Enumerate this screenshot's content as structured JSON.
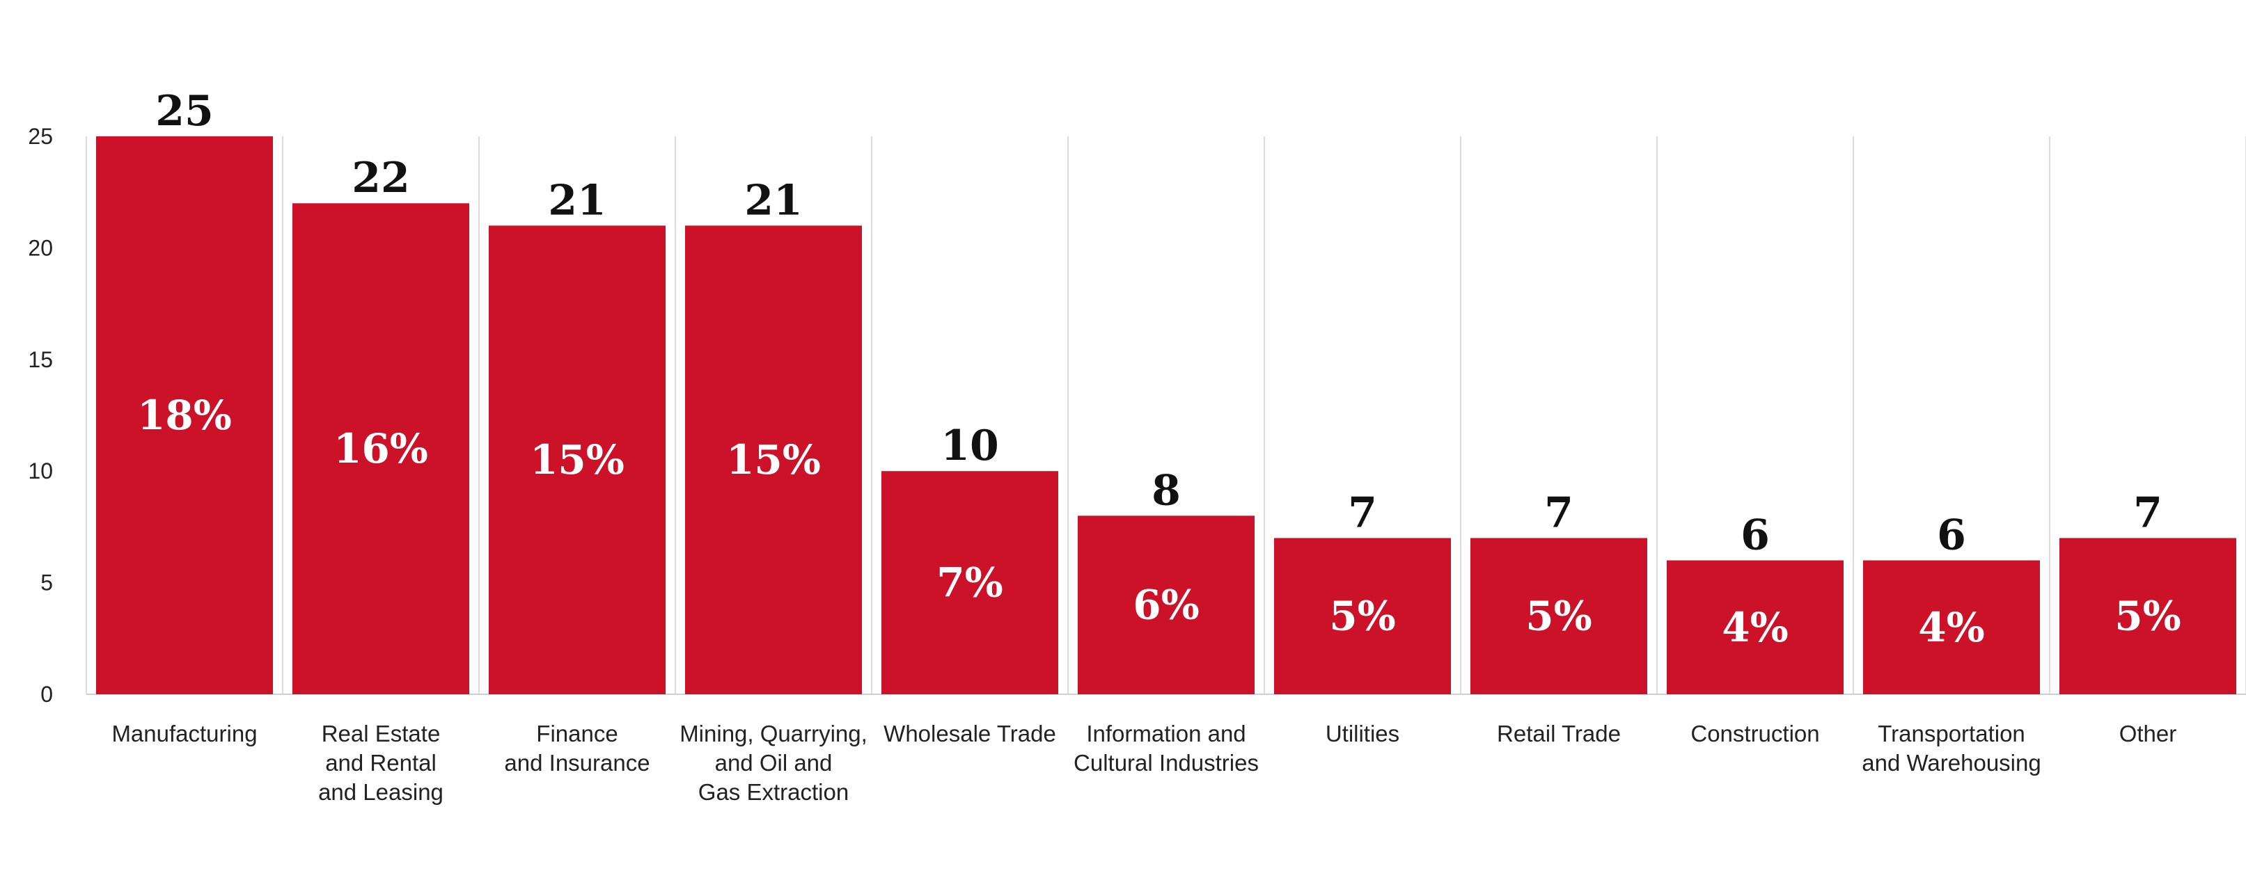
{
  "chart_data": {
    "type": "bar",
    "categories": [
      "Manufacturing",
      "Real Estate\nand Rental\nand Leasing",
      "Finance\nand Insurance",
      "Mining, Quarrying,\nand Oil and\nGas Extraction",
      "Wholesale Trade",
      "Information and\nCultural Industries",
      "Utilities",
      "Retail Trade",
      "Construction",
      "Transportation\nand Warehousing",
      "Other"
    ],
    "values": [
      25,
      22,
      21,
      21,
      10,
      8,
      7,
      7,
      6,
      6,
      7
    ],
    "percent_labels": [
      "18%",
      "16%",
      "15%",
      "15%",
      "7%",
      "6%",
      "5%",
      "5%",
      "4%",
      "4%",
      "5%"
    ],
    "value_labels": [
      "25",
      "22",
      "21",
      "21",
      "10",
      "8",
      "7",
      "7",
      "6",
      "6",
      "7"
    ],
    "yticks": [
      0,
      5,
      10,
      15,
      20,
      25
    ],
    "ylim": [
      0,
      25
    ],
    "title": "",
    "xlabel": "",
    "ylabel": "",
    "grid": "vertical separators",
    "legend": "none",
    "colors": {
      "bar": "#cc1228",
      "value_text": "#111111",
      "percent_text": "#ffffff"
    }
  }
}
